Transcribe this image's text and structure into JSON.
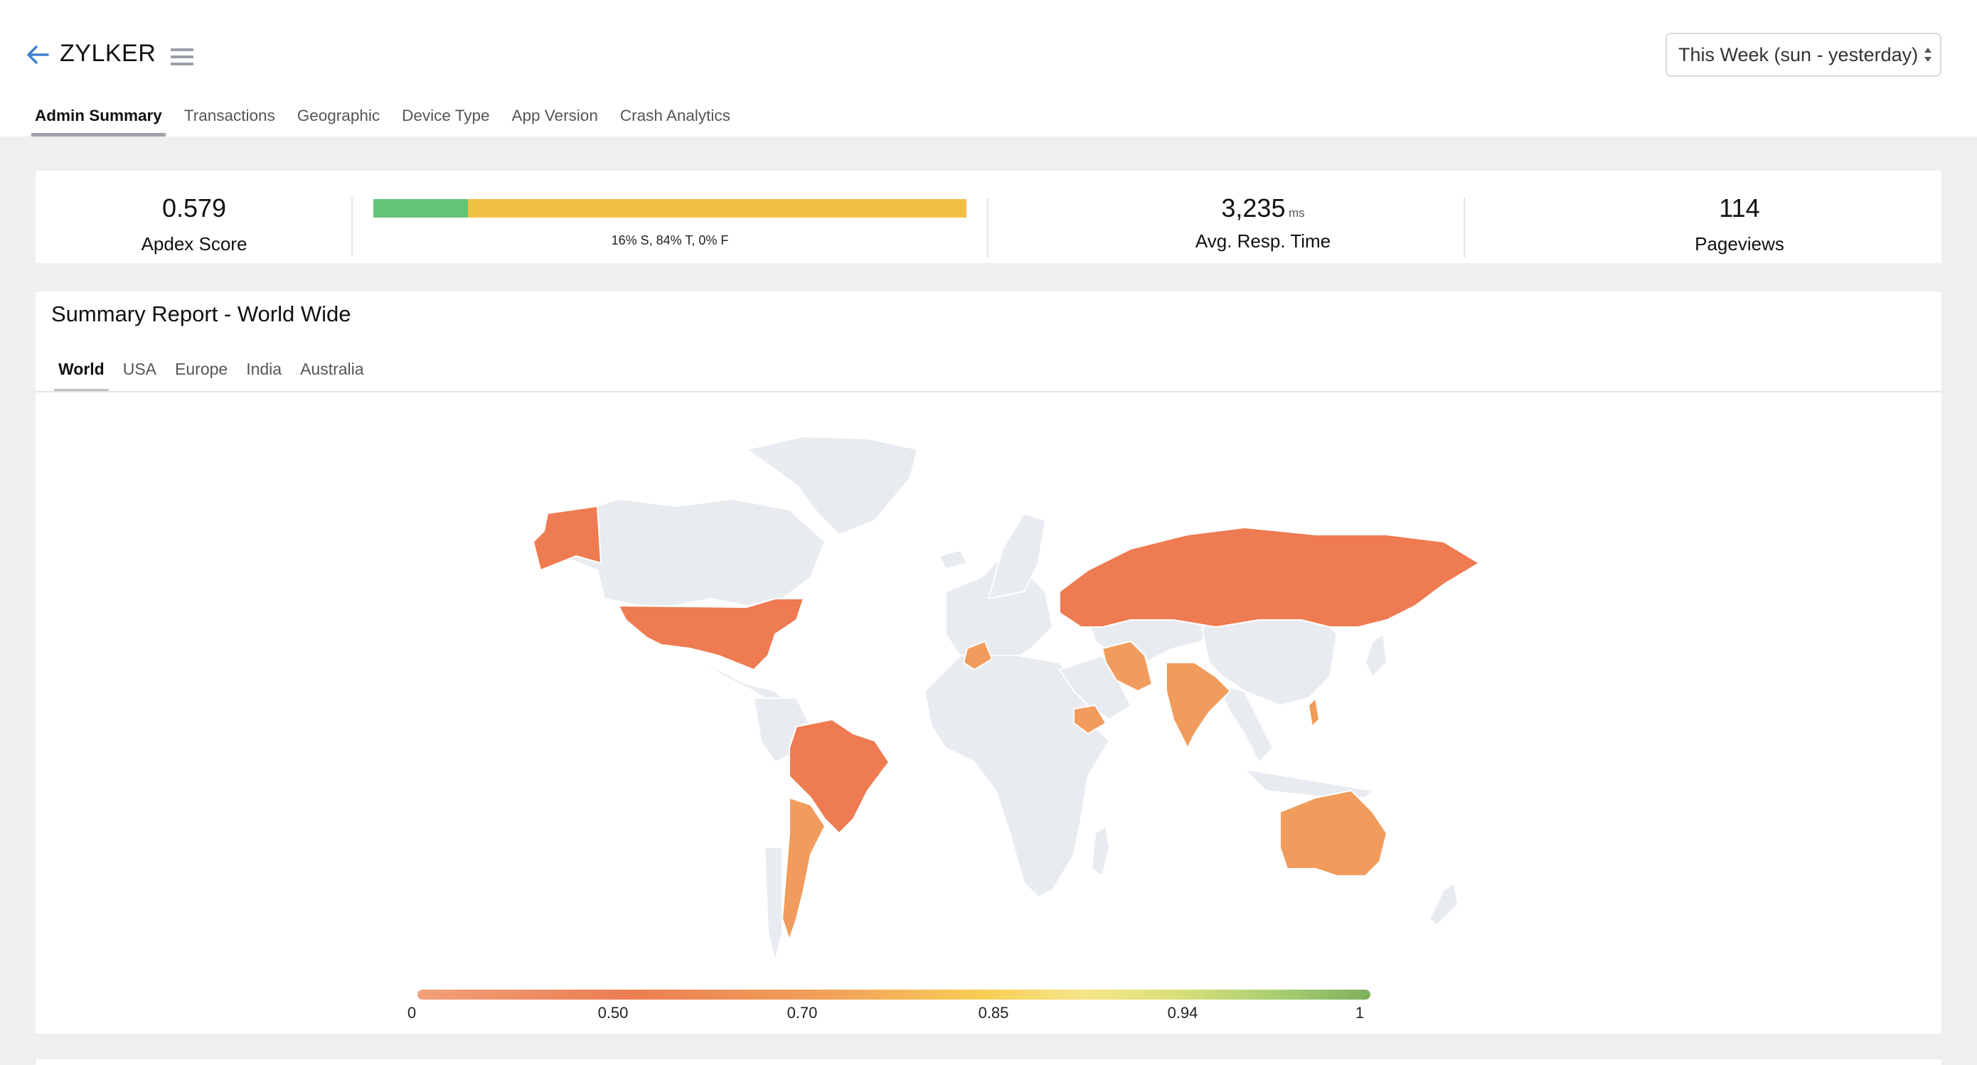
{
  "header": {
    "title": "ZYLKER",
    "back_icon": "arrow-left-icon",
    "menu_icon": "hamburger-menu-icon",
    "range_select": {
      "value": "This Week (sun - yesterday)"
    }
  },
  "tabs": [
    {
      "label": "Admin Summary",
      "active": true
    },
    {
      "label": "Transactions"
    },
    {
      "label": "Geographic"
    },
    {
      "label": "Device Type"
    },
    {
      "label": "App Version"
    },
    {
      "label": "Crash Analytics"
    }
  ],
  "kpis": {
    "apdex": {
      "value": "0.579",
      "label": "Apdex Score"
    },
    "apdex_breakdown": {
      "caption": "16% S, 84% T, 0% F",
      "satisfied": 16,
      "tolerating": 84,
      "frustrated": 0
    },
    "response_time": {
      "value": "3,235",
      "unit": "ms",
      "label": "Avg. Resp. Time"
    },
    "pageviews": {
      "value": "114",
      "label": "Pageviews"
    }
  },
  "summary": {
    "title": "Summary Report - World Wide",
    "region_tabs": [
      {
        "label": "World",
        "active": true
      },
      {
        "label": "USA"
      },
      {
        "label": "Europe"
      },
      {
        "label": "India"
      },
      {
        "label": "Australia"
      }
    ],
    "legend": [
      "0",
      "0.50",
      "0.70",
      "0.85",
      "0.94",
      "1"
    ]
  },
  "colors": {
    "satisfied": "#63c477",
    "tolerating": "#f3c044",
    "frustrated": "#e45850",
    "map_land": "#e8ebf0",
    "country_dark": "#ee7b51",
    "country_light": "#f19c5c"
  }
}
